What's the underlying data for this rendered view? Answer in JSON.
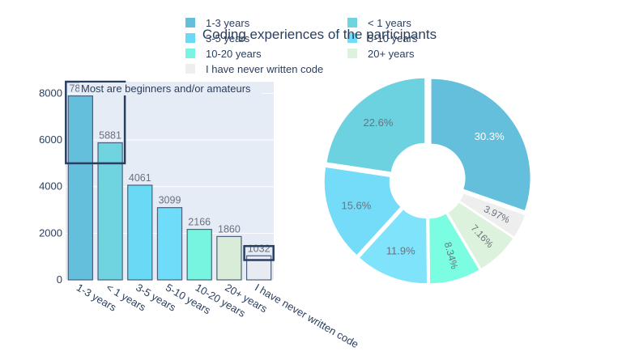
{
  "chart_data": [
    {
      "type": "bar",
      "title": "Coding experiences of the participants",
      "categories": [
        "1-3 years",
        "< 1 years",
        "3-5 years",
        "5-10 years",
        "10-20 years",
        "20+ years",
        "I have never written code"
      ],
      "values": [
        7891,
        5881,
        4061,
        3099,
        2166,
        1860,
        1032
      ],
      "value_labels": [
        "7891",
        "5881",
        "4061",
        "3099",
        "2166",
        "1860",
        "1032"
      ],
      "colors": [
        "#63bfdc",
        "#6fd3e0",
        "#69d9f5",
        "#6fdcfa",
        "#77f5e0",
        "#d8ecd8",
        "#e8ecf2"
      ],
      "ylim": [
        0,
        8500
      ],
      "yticks": [
        0,
        2000,
        4000,
        6000,
        8000
      ],
      "grid": true,
      "annotation": "Most are beginners and/or amateurs",
      "highlight_boxes": [
        {
          "category_from": "1-3 years",
          "category_to": "< 1 years",
          "y_from": 5000,
          "y_to": 8500
        },
        {
          "category_from": "I have never written code",
          "category_to": "I have never written code",
          "y_from": 850,
          "y_to": 1450
        }
      ]
    },
    {
      "type": "pie",
      "hole": true,
      "labels": [
        "1-3 years",
        "< 1 years",
        "3-5 years",
        "5-10 years",
        "10-20 years",
        "20+ years",
        "I have never written code"
      ],
      "slices": [
        {
          "label": "1-3 years",
          "percent": 30.3,
          "text": "30.3%",
          "color": "#63bfdc"
        },
        {
          "label": "I have never written code",
          "percent": 3.97,
          "text": "3.97%",
          "color": "#eeeeee"
        },
        {
          "label": "20+ years",
          "percent": 7.16,
          "text": "7.16%",
          "color": "#dcf2dc"
        },
        {
          "label": "10-20 years",
          "percent": 8.34,
          "text": "8.34%",
          "color": "#7afde0"
        },
        {
          "label": "5-10 years",
          "percent": 11.9,
          "text": "11.9%",
          "color": "#7ee3fb"
        },
        {
          "label": "3-5 years",
          "percent": 15.6,
          "text": "15.6%",
          "color": "#74dcf8"
        },
        {
          "label": "< 1 years",
          "percent": 22.6,
          "text": "22.6%",
          "color": "#6dd2e0"
        }
      ],
      "legend_placement": "top",
      "legend": [
        {
          "label": "1-3 years",
          "color": "#63bfdc"
        },
        {
          "label": "< 1 years",
          "color": "#6fd3e0"
        },
        {
          "label": "3-5 years",
          "color": "#69d9f5"
        },
        {
          "label": "5-10 years",
          "color": "#6fdcfa"
        },
        {
          "label": "10-20 years",
          "color": "#77f5e0"
        },
        {
          "label": "20+ years",
          "color": "#dcf2dc"
        },
        {
          "label": "I have never written code",
          "color": "#eeeeee"
        }
      ]
    }
  ]
}
